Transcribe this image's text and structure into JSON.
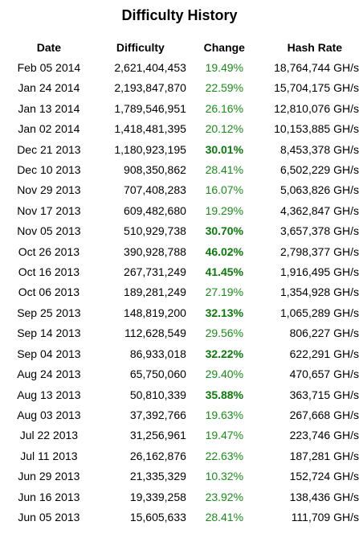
{
  "title": "Difficulty History",
  "columns": {
    "date": "Date",
    "difficulty": "Difficulty",
    "change": "Change",
    "hash_rate": "Hash Rate"
  },
  "colors": {
    "change_text": "#1a8c1a",
    "change_strong_text": "#0b7a0b"
  },
  "rows": [
    {
      "date": "Feb 05 2014",
      "difficulty": "2,621,404,453",
      "change": "19.49%",
      "strong": false,
      "hash_rate": "18,764,744 GH/s"
    },
    {
      "date": "Jan 24 2014",
      "difficulty": "2,193,847,870",
      "change": "22.59%",
      "strong": false,
      "hash_rate": "15,704,175 GH/s"
    },
    {
      "date": "Jan 13 2014",
      "difficulty": "1,789,546,951",
      "change": "26.16%",
      "strong": false,
      "hash_rate": "12,810,076 GH/s"
    },
    {
      "date": "Jan 02 2014",
      "difficulty": "1,418,481,395",
      "change": "20.12%",
      "strong": false,
      "hash_rate": "10,153,885 GH/s"
    },
    {
      "date": "Dec 21 2013",
      "difficulty": "1,180,923,195",
      "change": "30.01%",
      "strong": true,
      "hash_rate": "8,453,378 GH/s"
    },
    {
      "date": "Dec 10 2013",
      "difficulty": "908,350,862",
      "change": "28.41%",
      "strong": false,
      "hash_rate": "6,502,229 GH/s"
    },
    {
      "date": "Nov 29 2013",
      "difficulty": "707,408,283",
      "change": "16.07%",
      "strong": false,
      "hash_rate": "5,063,826 GH/s"
    },
    {
      "date": "Nov 17 2013",
      "difficulty": "609,482,680",
      "change": "19.29%",
      "strong": false,
      "hash_rate": "4,362,847 GH/s"
    },
    {
      "date": "Nov 05 2013",
      "difficulty": "510,929,738",
      "change": "30.70%",
      "strong": true,
      "hash_rate": "3,657,378 GH/s"
    },
    {
      "date": "Oct 26 2013",
      "difficulty": "390,928,788",
      "change": "46.02%",
      "strong": true,
      "hash_rate": "2,798,377 GH/s"
    },
    {
      "date": "Oct 16 2013",
      "difficulty": "267,731,249",
      "change": "41.45%",
      "strong": true,
      "hash_rate": "1,916,495 GH/s"
    },
    {
      "date": "Oct 06 2013",
      "difficulty": "189,281,249",
      "change": "27.19%",
      "strong": false,
      "hash_rate": "1,354,928 GH/s"
    },
    {
      "date": "Sep 25 2013",
      "difficulty": "148,819,200",
      "change": "32.13%",
      "strong": true,
      "hash_rate": "1,065,289 GH/s"
    },
    {
      "date": "Sep 14 2013",
      "difficulty": "112,628,549",
      "change": "29.56%",
      "strong": false,
      "hash_rate": "806,227 GH/s"
    },
    {
      "date": "Sep 04 2013",
      "difficulty": "86,933,018",
      "change": "32.22%",
      "strong": true,
      "hash_rate": "622,291 GH/s"
    },
    {
      "date": "Aug 24 2013",
      "difficulty": "65,750,060",
      "change": "29.40%",
      "strong": false,
      "hash_rate": "470,657 GH/s"
    },
    {
      "date": "Aug 13 2013",
      "difficulty": "50,810,339",
      "change": "35.88%",
      "strong": true,
      "hash_rate": "363,715 GH/s"
    },
    {
      "date": "Aug 03 2013",
      "difficulty": "37,392,766",
      "change": "19.63%",
      "strong": false,
      "hash_rate": "267,668 GH/s"
    },
    {
      "date": "Jul 22 2013",
      "difficulty": "31,256,961",
      "change": "19.47%",
      "strong": false,
      "hash_rate": "223,746 GH/s"
    },
    {
      "date": "Jul 11 2013",
      "difficulty": "26,162,876",
      "change": "22.63%",
      "strong": false,
      "hash_rate": "187,281 GH/s"
    },
    {
      "date": "Jun 29 2013",
      "difficulty": "21,335,329",
      "change": "10.32%",
      "strong": false,
      "hash_rate": "152,724 GH/s"
    },
    {
      "date": "Jun 16 2013",
      "difficulty": "19,339,258",
      "change": "23.92%",
      "strong": false,
      "hash_rate": "138,436 GH/s"
    },
    {
      "date": "Jun 05 2013",
      "difficulty": "15,605,633",
      "change": "28.41%",
      "strong": false,
      "hash_rate": "111,709 GH/s"
    }
  ]
}
